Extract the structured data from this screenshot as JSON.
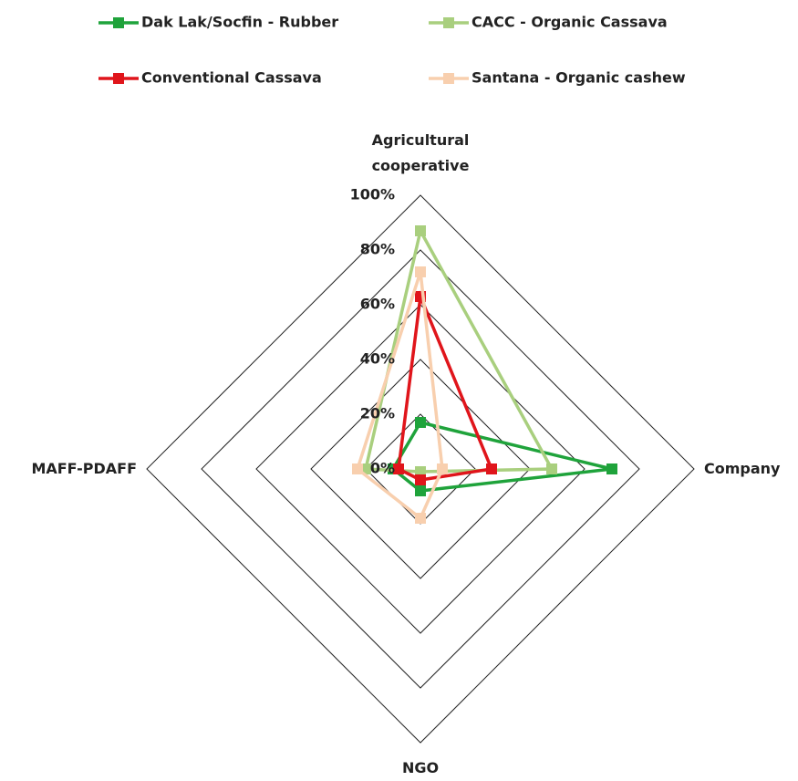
{
  "chart_data": {
    "type": "radar",
    "categories": [
      "Agricultural cooperative",
      "Company",
      "NGO",
      "MAFF-PDAFF"
    ],
    "series": [
      {
        "name": "Dak Lak/Socfin - Rubber",
        "color": "#1fa33b",
        "values": [
          17,
          70,
          8,
          10
        ]
      },
      {
        "name": "CACC - Organic Cassava",
        "color": "#a9cf7e",
        "values": [
          87,
          48,
          1,
          20
        ]
      },
      {
        "name": "Conventional Cassava",
        "color": "#e0151b",
        "values": [
          63,
          26,
          4,
          8
        ]
      },
      {
        "name": "Santana - Organic cashew",
        "color": "#f8cfae",
        "values": [
          72,
          8,
          18,
          23
        ]
      }
    ],
    "rlim": [
      0,
      100
    ],
    "rticks": [
      {
        "value": 0,
        "label": "0%"
      },
      {
        "value": 20,
        "label": "20%"
      },
      {
        "value": 40,
        "label": "40%"
      },
      {
        "value": 60,
        "label": "60%"
      },
      {
        "value": 80,
        "label": "80%"
      },
      {
        "value": 100,
        "label": "100%"
      }
    ],
    "grid": true
  }
}
